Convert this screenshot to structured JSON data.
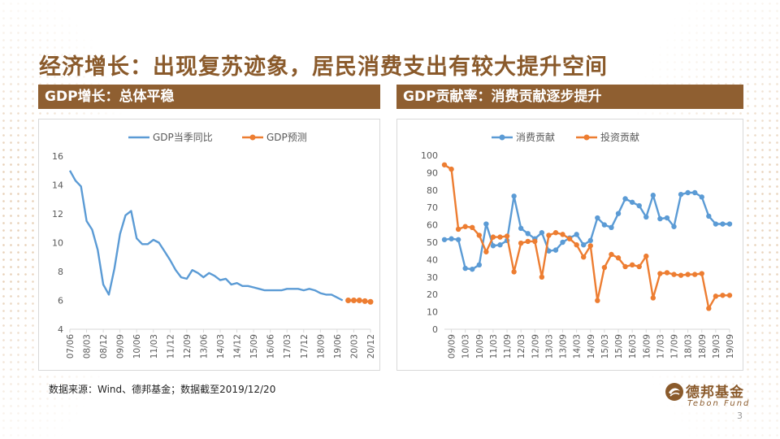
{
  "slide": {
    "title": "经济增长：出现复苏迹象，居民消费支出有较大提升空间",
    "left_section": "GDP增长：总体平稳",
    "right_section": "GDP贡献率：消费贡献逐步提升",
    "footnote": "数据来源：Wind、德邦基金；数据截至2019/12/20",
    "logo_cn": "德邦基金",
    "logo_en": "Tebon Fund",
    "page_number": "3"
  },
  "chart_data": [
    {
      "type": "line",
      "title": "",
      "xlabel": "",
      "ylabel": "",
      "ylim": [
        4,
        16
      ],
      "yticks": [
        4,
        6,
        8,
        10,
        12,
        14,
        16
      ],
      "xticks": [
        "07/06",
        "08/03",
        "08/12",
        "09/09",
        "10/06",
        "11/03",
        "11/12",
        "12/09",
        "13/06",
        "14/03",
        "14/12",
        "15/09",
        "16/06",
        "17/03",
        "17/12",
        "18/09",
        "19/06",
        "20/03",
        "20/12"
      ],
      "legend_position": "top",
      "grid": false,
      "series": [
        {
          "name": "GDP当季同比",
          "color": "#5b9bd5",
          "x": [
            "07/06",
            "07/09",
            "07/12",
            "08/03",
            "08/06",
            "08/09",
            "08/12",
            "09/03",
            "09/06",
            "09/09",
            "09/12",
            "10/03",
            "10/06",
            "10/09",
            "10/12",
            "11/03",
            "11/06",
            "11/09",
            "11/12",
            "12/03",
            "12/06",
            "12/09",
            "12/12",
            "13/03",
            "13/06",
            "13/09",
            "13/12",
            "14/03",
            "14/06",
            "14/09",
            "14/12",
            "15/03",
            "15/06",
            "15/09",
            "15/12",
            "16/03",
            "16/06",
            "16/09",
            "16/12",
            "17/03",
            "17/06",
            "17/09",
            "17/12",
            "18/03",
            "18/06",
            "18/09",
            "18/12",
            "19/03",
            "19/06",
            "19/09"
          ],
          "values": [
            15.0,
            14.3,
            13.9,
            11.5,
            10.9,
            9.5,
            7.1,
            6.4,
            8.2,
            10.6,
            11.9,
            12.2,
            10.3,
            9.9,
            9.9,
            10.2,
            10.0,
            9.4,
            8.8,
            8.1,
            7.6,
            7.5,
            8.1,
            7.9,
            7.6,
            7.9,
            7.7,
            7.4,
            7.5,
            7.1,
            7.2,
            7.0,
            7.0,
            6.9,
            6.8,
            6.7,
            6.7,
            6.7,
            6.7,
            6.8,
            6.8,
            6.8,
            6.7,
            6.8,
            6.7,
            6.5,
            6.4,
            6.4,
            6.2,
            6.0
          ]
        },
        {
          "name": "GDP预测",
          "color": "#ed7d31",
          "x": [
            "19/12",
            "20/03",
            "20/06",
            "20/09",
            "20/12"
          ],
          "values": [
            6.0,
            6.0,
            6.0,
            5.95,
            5.9
          ]
        }
      ]
    },
    {
      "type": "line",
      "title": "",
      "xlabel": "",
      "ylabel": "",
      "ylim": [
        0,
        100
      ],
      "yticks": [
        0,
        10,
        20,
        30,
        40,
        50,
        60,
        70,
        80,
        90,
        100
      ],
      "xticks": [
        "09/09",
        "10/03",
        "10/09",
        "11/03",
        "11/09",
        "12/03",
        "12/09",
        "13/03",
        "13/09",
        "14/03",
        "14/09",
        "15/03",
        "15/09",
        "16/03",
        "16/09",
        "17/03",
        "17/09",
        "18/03",
        "18/09",
        "19/03",
        "19/09"
      ],
      "legend_position": "top",
      "grid": false,
      "series": [
        {
          "name": "消费贡献",
          "color": "#5b9bd5",
          "x": [
            "09/06",
            "09/09",
            "09/12",
            "10/03",
            "10/06",
            "10/09",
            "10/12",
            "11/03",
            "11/06",
            "11/09",
            "11/12",
            "12/03",
            "12/06",
            "12/09",
            "12/12",
            "13/03",
            "13/06",
            "13/09",
            "13/12",
            "14/03",
            "14/06",
            "14/09",
            "14/12",
            "15/03",
            "15/06",
            "15/09",
            "15/12",
            "16/03",
            "16/06",
            "16/09",
            "16/12",
            "17/03",
            "17/06",
            "17/09",
            "17/12",
            "18/03",
            "18/06",
            "18/09",
            "18/12",
            "19/03",
            "19/06",
            "19/09"
          ],
          "values": [
            51.5,
            52,
            51.5,
            35,
            34.5,
            37,
            60.5,
            48,
            48.5,
            51,
            76.5,
            58,
            55,
            52,
            55.5,
            45,
            45.5,
            50,
            52.5,
            54.5,
            48.5,
            51,
            64,
            60,
            58.5,
            66.5,
            75,
            73,
            71,
            64.5,
            77,
            63.5,
            64,
            59,
            77.5,
            78.5,
            78.5,
            76,
            65,
            60.5,
            60.5,
            60.5
          ]
        },
        {
          "name": "投资贡献",
          "color": "#ed7d31",
          "x": [
            "09/06",
            "09/09",
            "09/12",
            "10/03",
            "10/06",
            "10/09",
            "10/12",
            "11/03",
            "11/06",
            "11/09",
            "11/12",
            "12/03",
            "12/06",
            "12/09",
            "12/12",
            "13/03",
            "13/06",
            "13/09",
            "13/12",
            "14/03",
            "14/06",
            "14/09",
            "14/12",
            "15/03",
            "15/06",
            "15/09",
            "15/12",
            "16/03",
            "16/06",
            "16/09",
            "16/12",
            "17/03",
            "17/06",
            "17/09",
            "17/12",
            "18/03",
            "18/06",
            "18/09",
            "18/12",
            "19/03",
            "19/06",
            "19/09"
          ],
          "values": [
            94.5,
            92,
            57.5,
            59,
            58.5,
            54,
            44.5,
            53,
            53,
            53.5,
            33,
            49.5,
            50.5,
            50.5,
            30,
            54,
            55.5,
            54.5,
            52,
            48.5,
            41.5,
            48,
            16.5,
            35.5,
            43,
            41,
            36,
            37,
            36,
            42,
            18,
            32,
            32.5,
            31.5,
            31,
            31.5,
            31.5,
            32,
            12,
            19,
            19.5,
            19.5
          ]
        }
      ]
    }
  ]
}
